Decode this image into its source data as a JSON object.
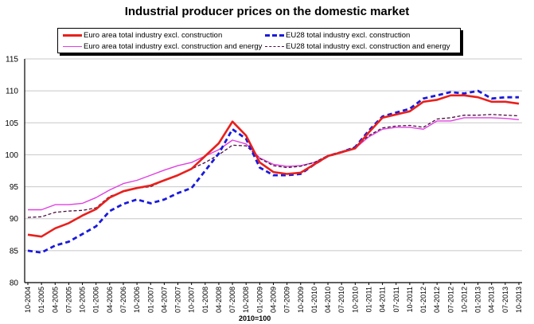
{
  "chart_data": {
    "type": "line",
    "title": "Industrial producer prices on the domestic market",
    "xlabel": "2010=100",
    "ylabel": "",
    "ylim": [
      80,
      115
    ],
    "yticks": [
      80,
      85,
      90,
      95,
      100,
      105,
      110,
      115
    ],
    "grid": true,
    "legend_position": "top-center",
    "x": [
      "10-2004",
      "01-2005",
      "04-2005",
      "07-2005",
      "10-2005",
      "01-2006",
      "04-2006",
      "07-2006",
      "10-2006",
      "01-2007",
      "04-2007",
      "07-2007",
      "10-2007",
      "01-2008",
      "04-2008",
      "07-2008",
      "10-2008",
      "01-2009",
      "04-2009",
      "07-2009",
      "10-2009",
      "01-2010",
      "04-2010",
      "07-2010",
      "10-2010",
      "01-2011",
      "04-2011",
      "07-2011",
      "10-2011",
      "01-2012",
      "04-2012",
      "07-2012",
      "10-2012",
      "01-2013",
      "04-2013",
      "07-2013",
      "10-2013"
    ],
    "series": [
      {
        "name": "Euro area total industry excl. construction",
        "color": "#e8201c",
        "style": "solid-thick",
        "values": [
          87.5,
          87.2,
          88.5,
          89.3,
          90.5,
          91.5,
          93.3,
          94.3,
          94.8,
          95.2,
          96.0,
          96.8,
          97.8,
          99.8,
          101.8,
          105.2,
          103.0,
          98.8,
          97.3,
          97.0,
          97.2,
          98.5,
          99.8,
          100.4,
          101.0,
          103.5,
          105.8,
          106.3,
          106.8,
          108.3,
          108.6,
          109.3,
          109.3,
          109.0,
          108.3,
          108.3,
          108.0
        ]
      },
      {
        "name": "EU28 total industry excl. construction",
        "color": "#1a1adc",
        "style": "dashed-thick",
        "values": [
          85.0,
          84.7,
          85.8,
          86.4,
          87.6,
          88.8,
          91.2,
          92.3,
          93.0,
          92.4,
          93.0,
          94.0,
          94.8,
          97.5,
          100.2,
          104.0,
          102.5,
          98.0,
          96.8,
          96.8,
          97.0,
          98.5,
          99.8,
          100.4,
          101.2,
          103.8,
          106.0,
          106.6,
          107.2,
          108.8,
          109.3,
          109.8,
          109.6,
          110.0,
          108.8,
          109.0,
          109.0
        ]
      },
      {
        "name": "Euro area total industry excl. construction and energy",
        "color": "#e040e0",
        "style": "solid-thin",
        "values": [
          91.4,
          91.4,
          92.2,
          92.2,
          92.4,
          93.3,
          94.5,
          95.5,
          96.0,
          96.8,
          97.6,
          98.3,
          98.8,
          99.8,
          100.8,
          102.3,
          101.7,
          99.5,
          98.5,
          98.2,
          98.3,
          98.8,
          99.8,
          100.5,
          101.0,
          102.8,
          104.0,
          104.3,
          104.3,
          104.0,
          105.3,
          105.3,
          105.8,
          105.8,
          105.8,
          105.7,
          105.5
        ]
      },
      {
        "name": "EU28 total industry excl. construction and energy",
        "color": "#4a1040",
        "style": "dashed-thin",
        "values": [
          90.2,
          90.3,
          91.0,
          91.2,
          91.3,
          91.7,
          93.5,
          94.2,
          94.8,
          95.0,
          96.0,
          96.8,
          97.8,
          98.8,
          100.0,
          101.5,
          101.4,
          99.4,
          98.3,
          98.0,
          98.2,
          98.8,
          99.9,
          100.5,
          101.2,
          103.0,
          104.2,
          104.5,
          104.6,
          104.3,
          105.6,
          105.8,
          106.2,
          106.2,
          106.3,
          106.2,
          106.1
        ]
      }
    ]
  }
}
